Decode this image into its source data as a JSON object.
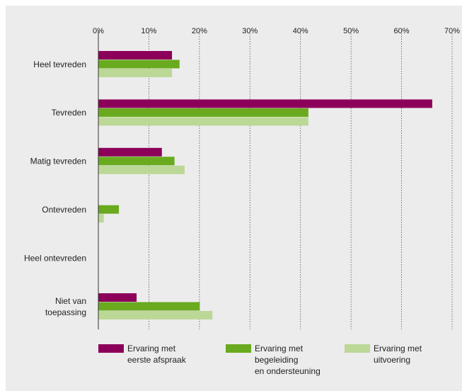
{
  "chart_data": {
    "type": "bar",
    "orientation": "horizontal",
    "categories": [
      [
        "Heel tevreden"
      ],
      [
        "Tevreden"
      ],
      [
        "Matig tevreden"
      ],
      [
        "Ontevreden"
      ],
      [
        "Heel ontevreden"
      ],
      [
        "Niet van",
        "toepassing"
      ]
    ],
    "series": [
      {
        "name": [
          "Ervaring met",
          "eerste afspraak"
        ],
        "color": "#8c0059",
        "values": [
          14.5,
          66,
          12.5,
          0,
          0,
          7.5
        ]
      },
      {
        "name": [
          "Ervaring met",
          "begeleiding",
          "en ondersteuning"
        ],
        "color": "#6aaa1f",
        "values": [
          16,
          41.5,
          15,
          4,
          0,
          20
        ]
      },
      {
        "name": [
          "Ervaring met",
          "uitvoering"
        ],
        "color": "#bcd896",
        "values": [
          14.5,
          41.5,
          17,
          1,
          0,
          22.5
        ]
      }
    ],
    "xlim": [
      0,
      70
    ],
    "xticks": [
      "0%",
      "10%",
      "20%",
      "30%",
      "40%",
      "50%",
      "60%",
      "70%"
    ],
    "grid": "vertical-dotted",
    "legend_position": "bottom"
  }
}
